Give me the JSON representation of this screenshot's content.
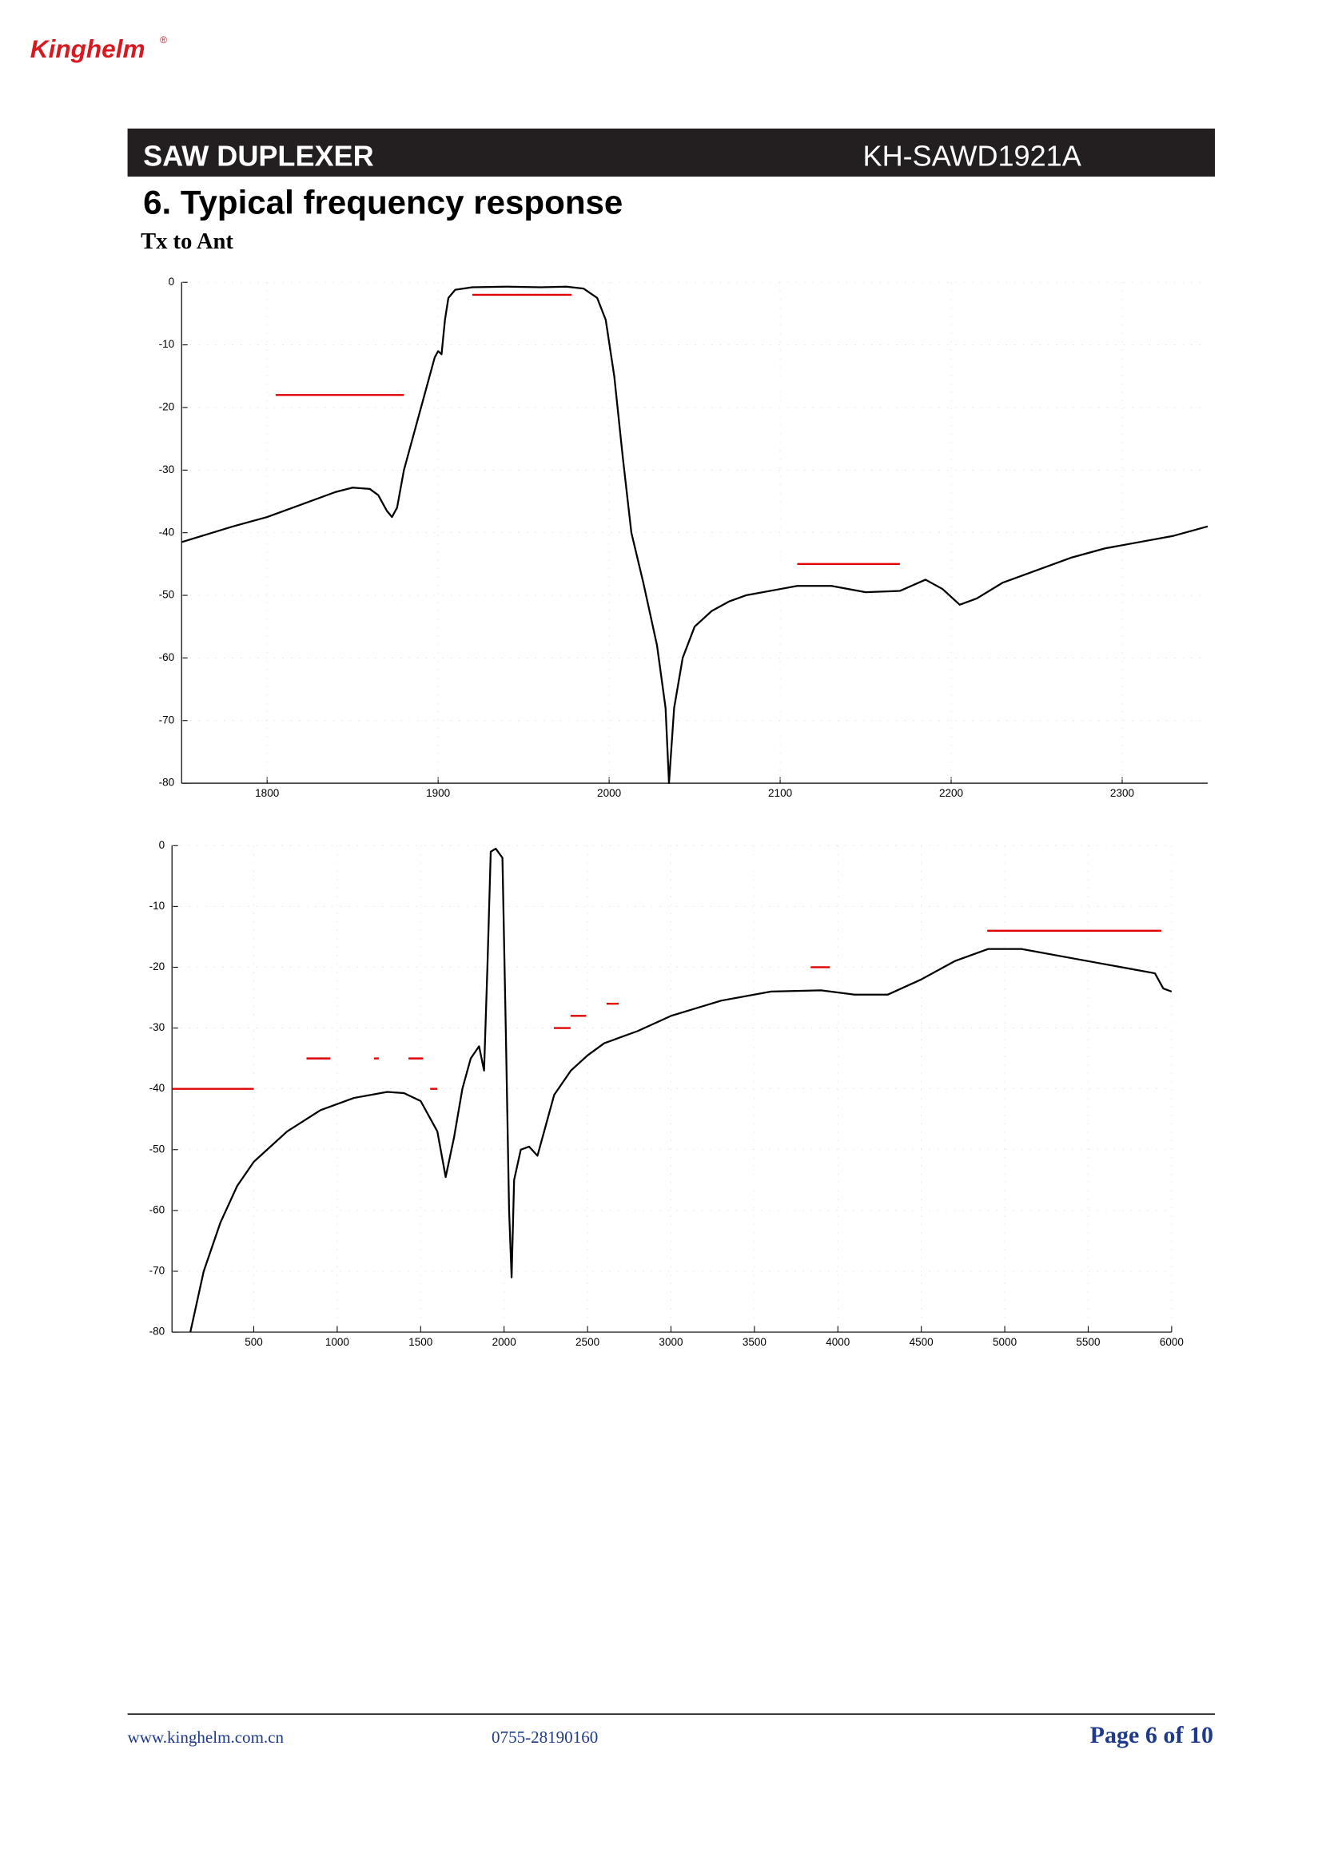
{
  "header": {
    "logo": "Kinghelm",
    "logo_mark": "®",
    "product": "SAW DUPLEXER",
    "part_number": "KH-SAWD1921A"
  },
  "section": {
    "title": "6. Typical frequency response",
    "subtitle": "Tx to Ant"
  },
  "chart_data": [
    {
      "type": "line",
      "grid": true,
      "limit_color": "#e00000",
      "xlim": [
        1750,
        2350
      ],
      "ylim": [
        -80,
        0
      ],
      "xticks": [
        1800,
        1900,
        2000,
        2100,
        2200,
        2300
      ],
      "yticks": [
        0,
        -10,
        -20,
        -30,
        -40,
        -50,
        -60,
        -70,
        -80
      ],
      "x": [
        1750,
        1780,
        1800,
        1820,
        1840,
        1850,
        1860,
        1865,
        1870,
        1873,
        1876,
        1880,
        1885,
        1890,
        1895,
        1898,
        1900,
        1902,
        1904,
        1906,
        1910,
        1920,
        1940,
        1960,
        1975,
        1985,
        1993,
        1998,
        2003,
        2008,
        2013,
        2020,
        2028,
        2033,
        2035,
        2038,
        2043,
        2050,
        2060,
        2070,
        2080,
        2100,
        2110,
        2130,
        2150,
        2170,
        2185,
        2195,
        2205,
        2215,
        2230,
        2250,
        2270,
        2290,
        2310,
        2330,
        2350
      ],
      "series": [
        {
          "color": "#000000",
          "values": [
            -41.5,
            -39,
            -37.5,
            -35.5,
            -33.5,
            -32.8,
            -33,
            -34,
            -36.5,
            -37.5,
            -36,
            -30,
            -25,
            -20,
            -15,
            -12,
            -11,
            -11.5,
            -6,
            -2.5,
            -1.2,
            -0.8,
            -0.7,
            -0.8,
            -0.7,
            -1,
            -2.5,
            -6,
            -15,
            -28,
            -40,
            -48,
            -58,
            -68,
            -80,
            -68,
            -60,
            -55,
            -52.5,
            -51,
            -50,
            -49,
            -48.5,
            -48.5,
            -49.5,
            -49.3,
            -47.5,
            -49,
            -51.5,
            -50.5,
            -48,
            -46,
            -44,
            -42.5,
            -41.5,
            -40.5,
            -39
          ]
        }
      ],
      "limits": [
        {
          "x": [
            1805,
            1880
          ],
          "y": -18
        },
        {
          "x": [
            1920,
            1978
          ],
          "y": -2
        },
        {
          "x": [
            2110,
            2170
          ],
          "y": -45
        }
      ]
    },
    {
      "type": "line",
      "grid": true,
      "limit_color": "#e00000",
      "xlim": [
        10,
        6000
      ],
      "ylim": [
        -80,
        0
      ],
      "xticks": [
        500,
        1000,
        1500,
        2000,
        2500,
        3000,
        3500,
        4000,
        4500,
        5000,
        5500,
        6000
      ],
      "yticks": [
        0,
        -10,
        -20,
        -30,
        -40,
        -50,
        -60,
        -70,
        -80
      ],
      "x": [
        120,
        200,
        300,
        400,
        500,
        700,
        900,
        1100,
        1300,
        1400,
        1500,
        1600,
        1650,
        1700,
        1750,
        1800,
        1850,
        1880,
        1900,
        1920,
        1950,
        1990,
        2010,
        2030,
        2045,
        2060,
        2100,
        2150,
        2200,
        2250,
        2300,
        2400,
        2500,
        2600,
        2700,
        2800,
        3000,
        3300,
        3600,
        3900,
        4100,
        4300,
        4500,
        4700,
        4900,
        5100,
        5400,
        5800,
        5900,
        5950,
        6000
      ],
      "series": [
        {
          "color": "#000000",
          "values": [
            -80,
            -70,
            -62,
            -56,
            -52,
            -47,
            -43.5,
            -41.5,
            -40.5,
            -40.7,
            -42,
            -47,
            -54.5,
            -48,
            -40,
            -35,
            -33,
            -37,
            -20,
            -1,
            -0.5,
            -2,
            -30,
            -60,
            -71,
            -55,
            -50,
            -49.5,
            -51,
            -46,
            -41,
            -37,
            -34.5,
            -32.5,
            -31.5,
            -30.5,
            -28,
            -25.5,
            -24,
            -23.8,
            -24.5,
            -24.5,
            -22,
            -19,
            -17,
            -17,
            -18.5,
            -20.5,
            -21,
            -23.5,
            -24
          ]
        }
      ],
      "limits": [
        {
          "x": [
            10,
            500
          ],
          "y": -40
        },
        {
          "x": [
            816,
            959
          ],
          "y": -35
        },
        {
          "x": [
            1220,
            1250
          ],
          "y": -35
        },
        {
          "x": [
            1427,
            1514
          ],
          "y": -35
        },
        {
          "x": [
            1557,
            1600
          ],
          "y": -40
        },
        {
          "x": [
            2298,
            2398
          ],
          "y": -30
        },
        {
          "x": [
            2398,
            2492
          ],
          "y": -28
        },
        {
          "x": [
            2614,
            2686
          ],
          "y": -26
        },
        {
          "x": [
            3837,
            3952
          ],
          "y": -20
        },
        {
          "x": [
            4895,
            5938
          ],
          "y": -14
        }
      ]
    }
  ],
  "footer": {
    "website": "www.kinghelm.com.cn",
    "phone": "0755-28190160",
    "page": "Page 6 of 10"
  }
}
